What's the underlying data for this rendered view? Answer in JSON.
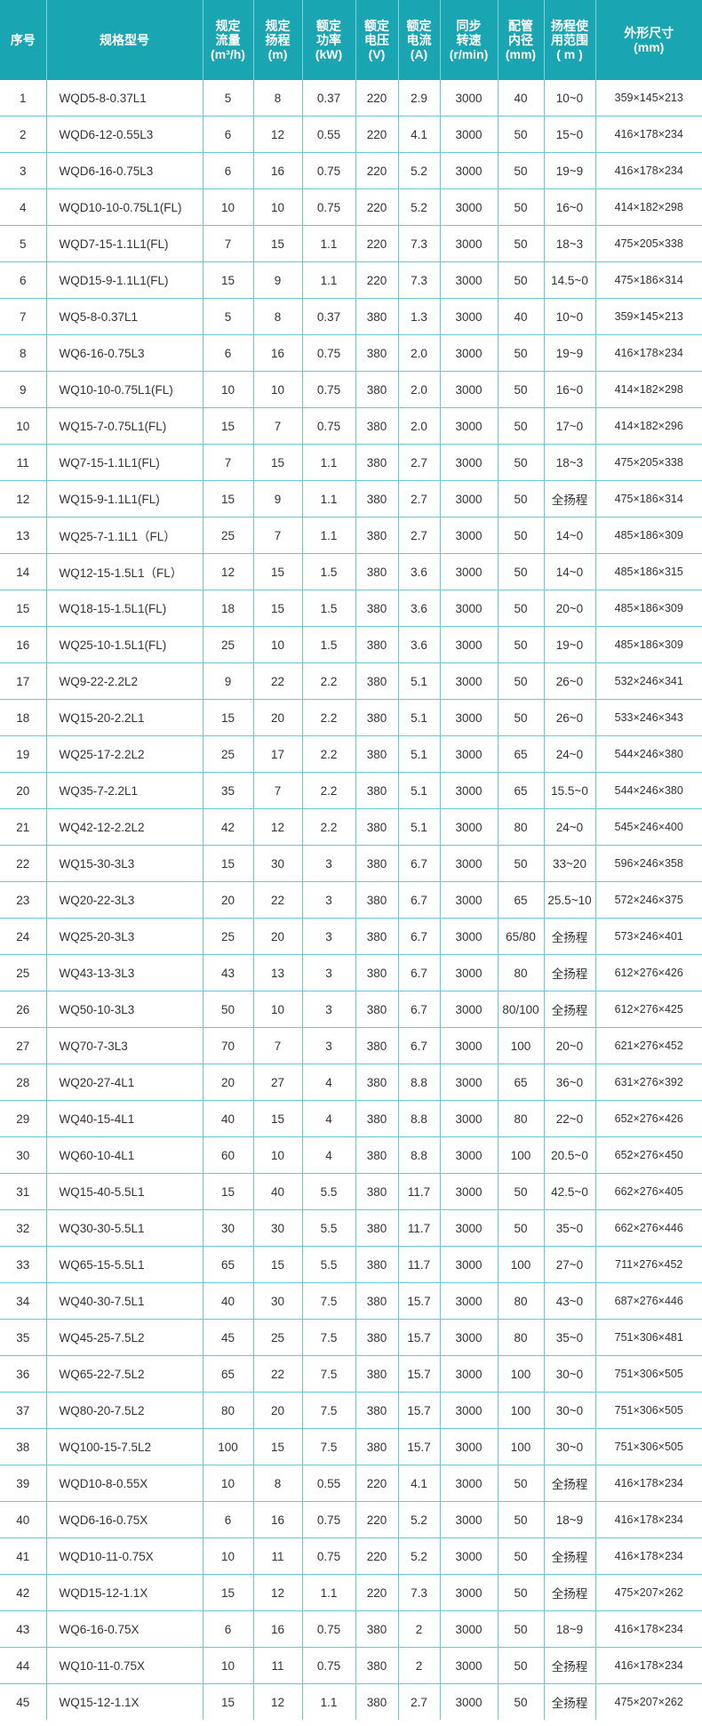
{
  "header": [
    [
      "序号"
    ],
    [
      "规格型号"
    ],
    [
      "规定",
      "流量",
      "(m³/h)"
    ],
    [
      "规定",
      "扬程",
      "(m)"
    ],
    [
      "额定",
      "功率",
      "(kW)"
    ],
    [
      "额定",
      "电压",
      "(V)"
    ],
    [
      "额定",
      "电流",
      "(A)"
    ],
    [
      "同步",
      "转速",
      "(r/min)"
    ],
    [
      "配管",
      "内径",
      "(mm)"
    ],
    [
      "扬程使",
      "用范围",
      "( m )"
    ],
    [
      "外形尺寸",
      "(mm)"
    ]
  ],
  "colors": {
    "header_bg": "#19a5b2",
    "grid": "#6cc6cf",
    "text": "#333333"
  },
  "rows": [
    [
      "1",
      "WQD5-8-0.37L1",
      "5",
      "8",
      "0.37",
      "220",
      "2.9",
      "3000",
      "40",
      "10~0",
      "359×145×213"
    ],
    [
      "2",
      "WQD6-12-0.55L3",
      "6",
      "12",
      "0.55",
      "220",
      "4.1",
      "3000",
      "50",
      "15~0",
      "416×178×234"
    ],
    [
      "3",
      "WQD6-16-0.75L3",
      "6",
      "16",
      "0.75",
      "220",
      "5.2",
      "3000",
      "50",
      "19~9",
      "416×178×234"
    ],
    [
      "4",
      "WQD10-10-0.75L1(FL)",
      "10",
      "10",
      "0.75",
      "220",
      "5.2",
      "3000",
      "50",
      "16~0",
      "414×182×298"
    ],
    [
      "5",
      "WQD7-15-1.1L1(FL)",
      "7",
      "15",
      "1.1",
      "220",
      "7.3",
      "3000",
      "50",
      "18~3",
      "475×205×338"
    ],
    [
      "6",
      "WQD15-9-1.1L1(FL)",
      "15",
      "9",
      "1.1",
      "220",
      "7.3",
      "3000",
      "50",
      "14.5~0",
      "475×186×314"
    ],
    [
      "7",
      "WQ5-8-0.37L1",
      "5",
      "8",
      "0.37",
      "380",
      "1.3",
      "3000",
      "40",
      "10~0",
      "359×145×213"
    ],
    [
      "8",
      "WQ6-16-0.75L3",
      "6",
      "16",
      "0.75",
      "380",
      "2.0",
      "3000",
      "50",
      "19~9",
      "416×178×234"
    ],
    [
      "9",
      "WQ10-10-0.75L1(FL)",
      "10",
      "10",
      "0.75",
      "380",
      "2.0",
      "3000",
      "50",
      "16~0",
      "414×182×298"
    ],
    [
      "10",
      "WQ15-7-0.75L1(FL)",
      "15",
      "7",
      "0.75",
      "380",
      "2.0",
      "3000",
      "50",
      "17~0",
      "414×182×296"
    ],
    [
      "11",
      "WQ7-15-1.1L1(FL)",
      "7",
      "15",
      "1.1",
      "380",
      "2.7",
      "3000",
      "50",
      "18~3",
      "475×205×338"
    ],
    [
      "12",
      "WQ15-9-1.1L1(FL)",
      "15",
      "9",
      "1.1",
      "380",
      "2.7",
      "3000",
      "50",
      "全扬程",
      "475×186×314"
    ],
    [
      "13",
      "WQ25-7-1.1L1（FL）",
      "25",
      "7",
      "1.1",
      "380",
      "2.7",
      "3000",
      "50",
      "14~0",
      "485×186×309"
    ],
    [
      "14",
      "WQ12-15-1.5L1（FL）",
      "12",
      "15",
      "1.5",
      "380",
      "3.6",
      "3000",
      "50",
      "14~0",
      "485×186×315"
    ],
    [
      "15",
      "WQ18-15-1.5L1(FL)",
      "18",
      "15",
      "1.5",
      "380",
      "3.6",
      "3000",
      "50",
      "20~0",
      "485×186×309"
    ],
    [
      "16",
      "WQ25-10-1.5L1(FL)",
      "25",
      "10",
      "1.5",
      "380",
      "3.6",
      "3000",
      "50",
      "19~0",
      "485×186×309"
    ],
    [
      "17",
      "WQ9-22-2.2L2",
      "9",
      "22",
      "2.2",
      "380",
      "5.1",
      "3000",
      "50",
      "26~0",
      "532×246×341"
    ],
    [
      "18",
      "WQ15-20-2.2L1",
      "15",
      "20",
      "2.2",
      "380",
      "5.1",
      "3000",
      "50",
      "26~0",
      "533×246×343"
    ],
    [
      "19",
      "WQ25-17-2.2L2",
      "25",
      "17",
      "2.2",
      "380",
      "5.1",
      "3000",
      "65",
      "24~0",
      "544×246×380"
    ],
    [
      "20",
      "WQ35-7-2.2L1",
      "35",
      "7",
      "2.2",
      "380",
      "5.1",
      "3000",
      "65",
      "15.5~0",
      "544×246×380"
    ],
    [
      "21",
      "WQ42-12-2.2L2",
      "42",
      "12",
      "2.2",
      "380",
      "5.1",
      "3000",
      "80",
      "24~0",
      "545×246×400"
    ],
    [
      "22",
      "WQ15-30-3L3",
      "15",
      "30",
      "3",
      "380",
      "6.7",
      "3000",
      "50",
      "33~20",
      "596×246×358"
    ],
    [
      "23",
      "WQ20-22-3L3",
      "20",
      "22",
      "3",
      "380",
      "6.7",
      "3000",
      "65",
      "25.5~10",
      "572×246×375"
    ],
    [
      "24",
      "WQ25-20-3L3",
      "25",
      "20",
      "3",
      "380",
      "6.7",
      "3000",
      "65/80",
      "全扬程",
      "573×246×401"
    ],
    [
      "25",
      "WQ43-13-3L3",
      "43",
      "13",
      "3",
      "380",
      "6.7",
      "3000",
      "80",
      "全扬程",
      "612×276×426"
    ],
    [
      "26",
      "WQ50-10-3L3",
      "50",
      "10",
      "3",
      "380",
      "6.7",
      "3000",
      "80/100",
      "全扬程",
      "612×276×425"
    ],
    [
      "27",
      "WQ70-7-3L3",
      "70",
      "7",
      "3",
      "380",
      "6.7",
      "3000",
      "100",
      "20~0",
      "621×276×452"
    ],
    [
      "28",
      "WQ20-27-4L1",
      "20",
      "27",
      "4",
      "380",
      "8.8",
      "3000",
      "65",
      "36~0",
      "631×276×392"
    ],
    [
      "29",
      "WQ40-15-4L1",
      "40",
      "15",
      "4",
      "380",
      "8.8",
      "3000",
      "80",
      "22~0",
      "652×276×426"
    ],
    [
      "30",
      "WQ60-10-4L1",
      "60",
      "10",
      "4",
      "380",
      "8.8",
      "3000",
      "100",
      "20.5~0",
      "652×276×450"
    ],
    [
      "31",
      "WQ15-40-5.5L1",
      "15",
      "40",
      "5.5",
      "380",
      "11.7",
      "3000",
      "50",
      "42.5~0",
      "662×276×405"
    ],
    [
      "32",
      "WQ30-30-5.5L1",
      "30",
      "30",
      "5.5",
      "380",
      "11.7",
      "3000",
      "50",
      "35~0",
      "662×276×446"
    ],
    [
      "33",
      "WQ65-15-5.5L1",
      "65",
      "15",
      "5.5",
      "380",
      "11.7",
      "3000",
      "100",
      "27~0",
      "711×276×452"
    ],
    [
      "34",
      "WQ40-30-7.5L1",
      "40",
      "30",
      "7.5",
      "380",
      "15.7",
      "3000",
      "80",
      "43~0",
      "687×276×446"
    ],
    [
      "35",
      "WQ45-25-7.5L2",
      "45",
      "25",
      "7.5",
      "380",
      "15.7",
      "3000",
      "80",
      "35~0",
      "751×306×481"
    ],
    [
      "36",
      "WQ65-22-7.5L2",
      "65",
      "22",
      "7.5",
      "380",
      "15.7",
      "3000",
      "100",
      "30~0",
      "751×306×505"
    ],
    [
      "37",
      "WQ80-20-7.5L2",
      "80",
      "20",
      "7.5",
      "380",
      "15.7",
      "3000",
      "100",
      "30~0",
      "751×306×505"
    ],
    [
      "38",
      "WQ100-15-7.5L2",
      "100",
      "15",
      "7.5",
      "380",
      "15.7",
      "3000",
      "100",
      "30~0",
      "751×306×505"
    ],
    [
      "39",
      "WQD10-8-0.55X",
      "10",
      "8",
      "0.55",
      "220",
      "4.1",
      "3000",
      "50",
      "全扬程",
      "416×178×234"
    ],
    [
      "40",
      "WQD6-16-0.75X",
      "6",
      "16",
      "0.75",
      "220",
      "5.2",
      "3000",
      "50",
      "18~9",
      "416×178×234"
    ],
    [
      "41",
      "WQD10-11-0.75X",
      "10",
      "11",
      "0.75",
      "220",
      "5.2",
      "3000",
      "50",
      "全扬程",
      "416×178×234"
    ],
    [
      "42",
      "WQD15-12-1.1X",
      "15",
      "12",
      "1.1",
      "220",
      "7.3",
      "3000",
      "50",
      "全扬程",
      "475×207×262"
    ],
    [
      "43",
      "WQ6-16-0.75X",
      "6",
      "16",
      "0.75",
      "380",
      "2",
      "3000",
      "50",
      "18~9",
      "416×178×234"
    ],
    [
      "44",
      "WQ10-11-0.75X",
      "10",
      "11",
      "0.75",
      "380",
      "2",
      "3000",
      "50",
      "全扬程",
      "416×178×234"
    ],
    [
      "45",
      "WQ15-12-1.1X",
      "15",
      "12",
      "1.1",
      "380",
      "2.7",
      "3000",
      "50",
      "全扬程",
      "475×207×262"
    ]
  ]
}
